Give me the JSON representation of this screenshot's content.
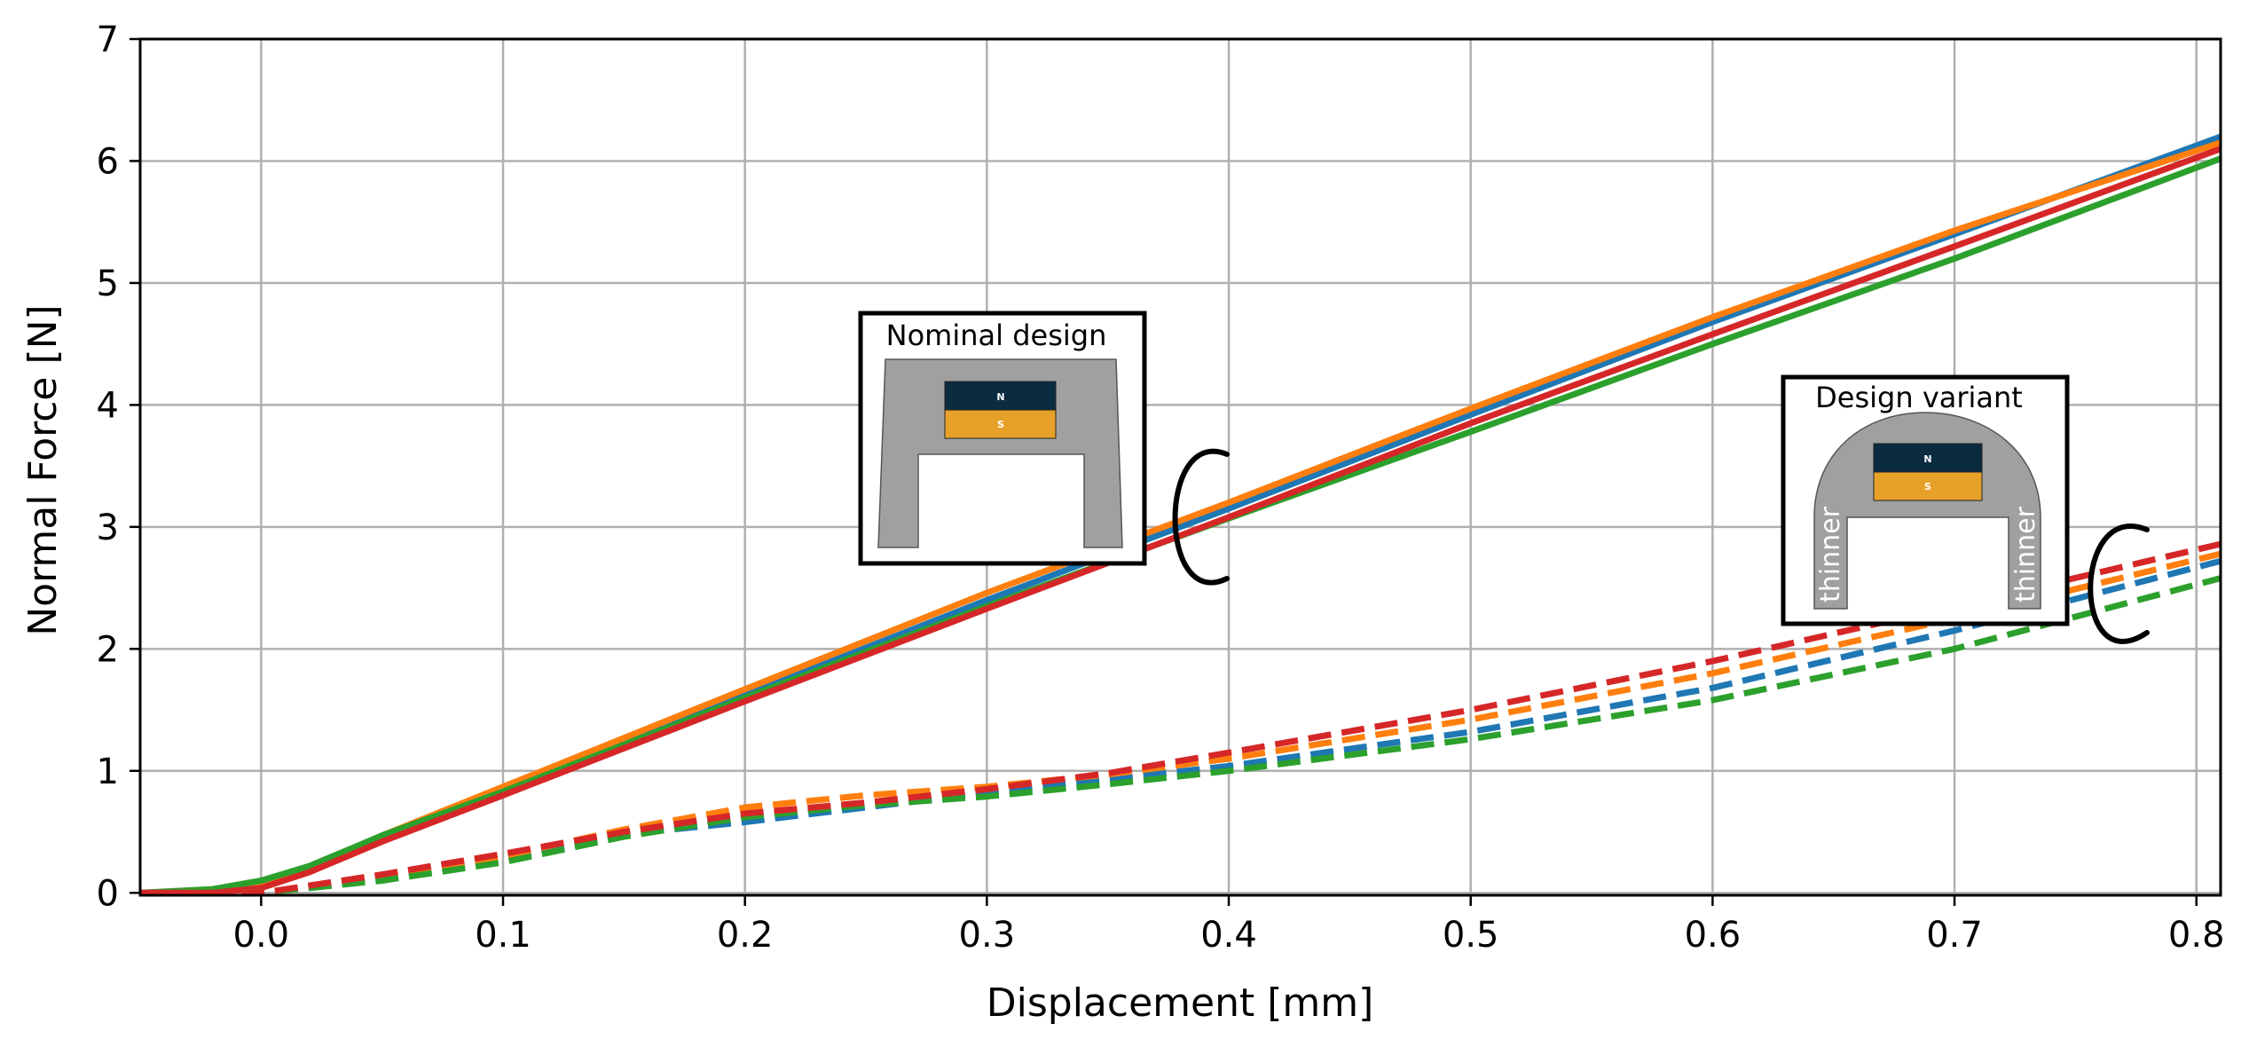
{
  "chart_data": {
    "type": "line",
    "xlabel": "Displacement [mm]",
    "ylabel": "Normal Force [N]",
    "xlim": [
      -0.05,
      0.81
    ],
    "ylim": [
      -0.02,
      7
    ],
    "xticks": [
      0.0,
      0.1,
      0.2,
      0.3,
      0.4,
      0.5,
      0.6,
      0.7,
      0.8
    ],
    "yticks": [
      0,
      1,
      2,
      3,
      4,
      5,
      6,
      7
    ],
    "xtick_labels": [
      "0.0",
      "0.1",
      "0.2",
      "0.3",
      "0.4",
      "0.5",
      "0.6",
      "0.7",
      "0.8"
    ],
    "ytick_labels": [
      "0",
      "1",
      "2",
      "3",
      "4",
      "5",
      "6",
      "7"
    ],
    "grid": true,
    "series": [
      {
        "group": "nominal",
        "style": "solid",
        "color": "#1f77b4",
        "x": [
          -0.05,
          -0.02,
          0.0,
          0.02,
          0.05,
          0.1,
          0.2,
          0.3,
          0.4,
          0.5,
          0.6,
          0.7,
          0.81
        ],
        "y": [
          0.0,
          0.01,
          0.07,
          0.2,
          0.45,
          0.83,
          1.62,
          2.4,
          3.15,
          3.92,
          4.68,
          5.4,
          6.2
        ]
      },
      {
        "group": "nominal",
        "style": "solid",
        "color": "#ff7f0e",
        "x": [
          -0.05,
          -0.02,
          0.0,
          0.02,
          0.05,
          0.1,
          0.2,
          0.3,
          0.4,
          0.5,
          0.6,
          0.7,
          0.81
        ],
        "y": [
          0.0,
          0.0,
          0.06,
          0.2,
          0.47,
          0.87,
          1.67,
          2.46,
          3.2,
          3.97,
          4.72,
          5.43,
          6.15
        ]
      },
      {
        "group": "nominal",
        "style": "solid",
        "color": "#2ca02c",
        "x": [
          -0.05,
          -0.02,
          0.0,
          0.02,
          0.05,
          0.1,
          0.2,
          0.3,
          0.4,
          0.5,
          0.6,
          0.7,
          0.81
        ],
        "y": [
          0.0,
          0.03,
          0.1,
          0.22,
          0.47,
          0.83,
          1.6,
          2.35,
          3.07,
          3.78,
          4.5,
          5.2,
          6.02
        ]
      },
      {
        "group": "nominal",
        "style": "solid",
        "color": "#d62728",
        "x": [
          -0.05,
          -0.02,
          0.0,
          0.02,
          0.05,
          0.1,
          0.2,
          0.3,
          0.4,
          0.5,
          0.6,
          0.7,
          0.81
        ],
        "y": [
          0.0,
          0.0,
          0.04,
          0.17,
          0.42,
          0.8,
          1.57,
          2.33,
          3.08,
          3.85,
          4.58,
          5.3,
          6.1
        ]
      },
      {
        "group": "variant",
        "style": "dashed",
        "color": "#1f77b4",
        "x": [
          -0.05,
          0.0,
          0.05,
          0.1,
          0.15,
          0.2,
          0.25,
          0.3,
          0.35,
          0.4,
          0.5,
          0.6,
          0.7,
          0.81
        ],
        "y": [
          0.0,
          0.0,
          0.12,
          0.28,
          0.48,
          0.58,
          0.7,
          0.82,
          0.93,
          1.04,
          1.32,
          1.68,
          2.15,
          2.72
        ]
      },
      {
        "group": "variant",
        "style": "dashed",
        "color": "#ff7f0e",
        "x": [
          -0.05,
          0.0,
          0.05,
          0.1,
          0.15,
          0.2,
          0.25,
          0.3,
          0.35,
          0.4,
          0.5,
          0.6,
          0.7,
          0.81
        ],
        "y": [
          0.0,
          0.0,
          0.14,
          0.3,
          0.52,
          0.7,
          0.8,
          0.87,
          0.97,
          1.1,
          1.42,
          1.8,
          2.25,
          2.78
        ]
      },
      {
        "group": "variant",
        "style": "dashed",
        "color": "#2ca02c",
        "x": [
          -0.05,
          0.0,
          0.05,
          0.1,
          0.15,
          0.2,
          0.25,
          0.3,
          0.35,
          0.4,
          0.5,
          0.6,
          0.7,
          0.81
        ],
        "y": [
          0.0,
          0.0,
          0.1,
          0.25,
          0.46,
          0.62,
          0.72,
          0.79,
          0.89,
          1.0,
          1.26,
          1.58,
          2.0,
          2.58
        ]
      },
      {
        "group": "variant",
        "style": "dashed",
        "color": "#d62728",
        "x": [
          -0.05,
          0.0,
          0.05,
          0.1,
          0.15,
          0.2,
          0.25,
          0.3,
          0.35,
          0.4,
          0.5,
          0.6,
          0.7,
          0.81
        ],
        "y": [
          0.0,
          0.0,
          0.15,
          0.32,
          0.5,
          0.65,
          0.74,
          0.85,
          0.98,
          1.15,
          1.5,
          1.9,
          2.35,
          2.86
        ]
      }
    ]
  },
  "insets": {
    "nominal": {
      "title": "Nominal design",
      "pole_north": "N",
      "pole_south": "S"
    },
    "variant": {
      "title": "Design variant",
      "pole_north": "N",
      "pole_south": "S",
      "side_left": "thinner",
      "side_right": "thinner"
    }
  },
  "colors": {
    "grid": "#b0b0b0",
    "housing": "#a0a0a0",
    "magnet_north": "#0b2b40",
    "magnet_south": "#e8a128"
  }
}
